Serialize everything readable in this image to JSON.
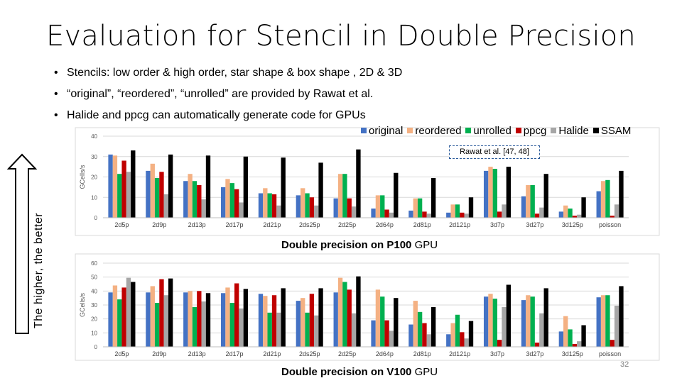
{
  "slide": {
    "title": "Evaluation for Stencil in Double Precision",
    "bullets": [
      "Stencils: low order & high order, star shape & box shape , 2D & 3D",
      "“original”, “reordered”, “unrolled” are provided by Rawat et al.",
      "Halide and ppcg can automatically generate code for GPUs"
    ],
    "side_label": "The higher, the better",
    "page_number": "32",
    "callout": "Rawat et al. [47, 48]"
  },
  "legend": [
    {
      "name": "original",
      "color": "#4472c4"
    },
    {
      "name": "reordered",
      "color": "#f4b183"
    },
    {
      "name": "unrolled",
      "color": "#00b050"
    },
    {
      "name": "ppcg",
      "color": "#c00000"
    },
    {
      "name": "Halide",
      "color": "#a6a6a6"
    },
    {
      "name": "SSAM",
      "color": "#000000"
    }
  ],
  "captions": {
    "p100": {
      "pre": "Double precision on ",
      "bold": "P100",
      "post": " GPU"
    },
    "v100": {
      "pre": "Double precision on ",
      "bold": "V100",
      "post": " GPU"
    }
  },
  "chart_data": [
    {
      "type": "bar",
      "caption": "Double precision on P100 GPU",
      "ylabel": "GCells/s",
      "ylim": [
        0,
        40
      ],
      "yticks": [
        0,
        10,
        20,
        30,
        40
      ],
      "grid": true,
      "categories": [
        "2d5p",
        "2d9p",
        "2d13p",
        "2d17p",
        "2d21p",
        "2ds25p",
        "2d25p",
        "2d64p",
        "2d81p",
        "2d121p",
        "3d7p",
        "3d27p",
        "3d125p",
        "poisson"
      ],
      "series": [
        {
          "name": "original",
          "values": [
            31,
            23,
            18,
            15,
            12,
            11,
            9.5,
            4.5,
            3.5,
            2.5,
            23,
            10.5,
            3,
            13
          ]
        },
        {
          "name": "reordered",
          "values": [
            30.5,
            26.5,
            21.5,
            19,
            14.5,
            14.5,
            21.5,
            11,
            9.5,
            6.5,
            25,
            16,
            6,
            18
          ]
        },
        {
          "name": "unrolled",
          "values": [
            21.5,
            19.5,
            18,
            17,
            12,
            12,
            21.5,
            11,
            9.5,
            6.5,
            24,
            16,
            4.5,
            18.5
          ]
        },
        {
          "name": "ppcg",
          "values": [
            28,
            22.5,
            16,
            14,
            11.5,
            10,
            9.5,
            4,
            3,
            2.5,
            3,
            2,
            1,
            1
          ]
        },
        {
          "name": "Halide",
          "values": [
            22.5,
            11.5,
            9,
            7.5,
            6,
            6,
            5.5,
            2.5,
            2,
            2,
            6.5,
            5,
            1.5,
            6.5
          ]
        },
        {
          "name": "SSAM",
          "values": [
            33,
            31,
            30.5,
            30,
            29.5,
            27,
            33.5,
            22,
            19.5,
            10,
            25,
            21.5,
            10,
            23
          ]
        }
      ]
    },
    {
      "type": "bar",
      "caption": "Double precision on V100 GPU",
      "ylabel": "GCells/s",
      "ylim": [
        0,
        60
      ],
      "yticks": [
        0,
        10,
        20,
        30,
        40,
        50,
        60
      ],
      "grid": true,
      "categories": [
        "2d5p",
        "2d9p",
        "2d13p",
        "2d17p",
        "2d21p",
        "2ds25p",
        "2d25p",
        "2d64p",
        "2d81p",
        "2d121p",
        "3d7p",
        "3d27p",
        "3d125p",
        "poisson"
      ],
      "series": [
        {
          "name": "original",
          "values": [
            39,
            39,
            39,
            38.5,
            38,
            33,
            39,
            19,
            16,
            9,
            36,
            33.5,
            11,
            35.5
          ]
        },
        {
          "name": "reordered",
          "values": [
            44,
            43.5,
            40,
            42.5,
            36.5,
            35,
            49.5,
            41,
            33,
            17,
            38,
            37,
            22,
            37
          ]
        },
        {
          "name": "unrolled",
          "values": [
            34,
            31.5,
            28.5,
            31.5,
            24.5,
            24.5,
            46.5,
            36,
            25,
            23,
            34.5,
            36,
            12.5,
            37
          ]
        },
        {
          "name": "ppcg",
          "values": [
            42.5,
            48.5,
            40,
            45.5,
            37,
            38,
            41,
            19,
            17,
            10.5,
            5,
            3,
            2,
            5
          ]
        },
        {
          "name": "Halide",
          "values": [
            49.5,
            37,
            32.5,
            27.5,
            24.5,
            22.5,
            24,
            11.5,
            9,
            6,
            28.5,
            24,
            4,
            29.5
          ]
        },
        {
          "name": "SSAM",
          "values": [
            46.5,
            49,
            38.5,
            41.5,
            42,
            42,
            50.5,
            35,
            28.5,
            18.5,
            44.5,
            42,
            15.5,
            43.5
          ]
        }
      ]
    }
  ]
}
